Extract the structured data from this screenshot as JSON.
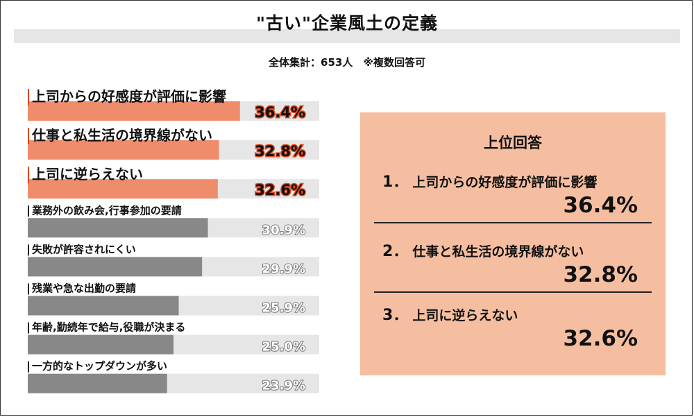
{
  "title": "\"古い\"企業風土の定義",
  "subtitle": "全体集計：653人　※複数回答可",
  "chart_data": {
    "type": "bar",
    "orientation": "horizontal",
    "xlim": [
      0,
      50
    ],
    "categories": [
      "上司からの好感度が評価に影響",
      "仕事と私生活の境界線がない",
      "上司に逆らえない",
      "業務外の飲み会,行事参加の要請",
      "失敗が許容されにくい",
      "残業や急な出勤の要請",
      "年齢,勤続年で給与,役職が決まる",
      "一方的なトップダウンが多い"
    ],
    "values": [
      36.4,
      32.8,
      32.6,
      30.9,
      29.9,
      25.9,
      25.0,
      23.9
    ],
    "value_labels": [
      "36.4%",
      "32.8%",
      "32.6%",
      "30.9%",
      "29.9%",
      "25.9%",
      "25.0%",
      "23.9%"
    ],
    "highlight_top": 3,
    "colors": {
      "highlight": "#ef8c6c",
      "normal": "#888888",
      "track": "#e6e6e6",
      "accent_tick": "#e2461c"
    }
  },
  "top_answers": {
    "heading": "上位回答",
    "items": [
      {
        "rank": "1．",
        "label": "上司からの好感度が評価に影響",
        "value": "36.4%"
      },
      {
        "rank": "2．",
        "label": "仕事と私生活の境界線がない",
        "value": "32.8%"
      },
      {
        "rank": "3．",
        "label": "上司に逆らえない",
        "value": "32.6%"
      }
    ],
    "panel_color": "#f6bea0"
  }
}
